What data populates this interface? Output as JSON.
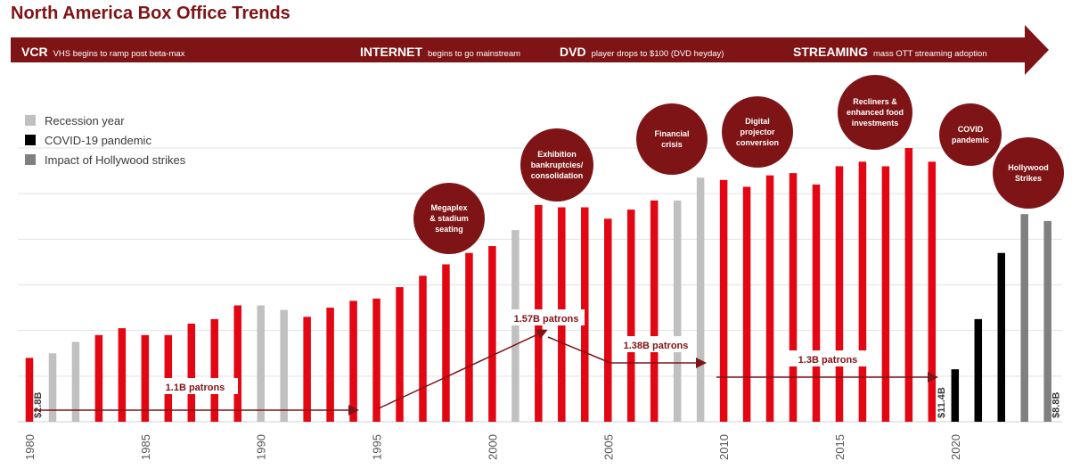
{
  "title": "North America Box Office Trends",
  "eras": [
    {
      "name": "VCR",
      "desc": "VHS begins to ramp post beta-max"
    },
    {
      "name": "INTERNET",
      "desc": "begins to go mainstream"
    },
    {
      "name": "DVD",
      "desc": "player drops to $100 (DVD heyday)"
    },
    {
      "name": "STREAMING",
      "desc": "mass OTT streaming adoption"
    }
  ],
  "legend": [
    {
      "label": "Recession year",
      "color": "#c0c0c0"
    },
    {
      "label": "COVID-19 pandemic",
      "color": "#000000"
    },
    {
      "label": "Impact of Hollywood strikes",
      "color": "#7f7f7f"
    }
  ],
  "bubbles": [
    {
      "text": "Megaplex\n& stadium\nseating"
    },
    {
      "text": "Exhibition\nbankruptcies/\nconsolidation"
    },
    {
      "text": "Financial\ncrisis"
    },
    {
      "text": "Digital\nprojector\nconversion"
    },
    {
      "text": "Recliners &\nenhanced food\ninvestments"
    },
    {
      "text": "COVID\npandemic"
    },
    {
      "text": "Hollywood\nStrikes"
    }
  ],
  "colors": {
    "primary": "#e30613",
    "dark_red": "#7f1416",
    "recession": "#c0c0c0",
    "covid": "#000000",
    "strike": "#7f7f7f"
  },
  "chart_data": {
    "type": "bar",
    "title": "North America Box Office Trends",
    "xlabel": "",
    "ylabel": "",
    "x_ticks": [
      1980,
      1985,
      1990,
      1995,
      2000,
      2005,
      2010,
      2015,
      2020
    ],
    "ylim": [
      0,
      12.0
    ],
    "grid": true,
    "categories": [
      1980,
      1981,
      1982,
      1983,
      1984,
      1985,
      1986,
      1987,
      1988,
      1989,
      1990,
      1991,
      1992,
      1993,
      1994,
      1995,
      1996,
      1997,
      1998,
      1999,
      2000,
      2001,
      2002,
      2003,
      2004,
      2005,
      2006,
      2007,
      2008,
      2009,
      2010,
      2011,
      2012,
      2013,
      2014,
      2015,
      2016,
      2017,
      2018,
      2019,
      2020,
      2021,
      2022,
      2023,
      2024
    ],
    "values": [
      2.8,
      3.0,
      3.5,
      3.8,
      4.1,
      3.8,
      3.8,
      4.3,
      4.5,
      5.1,
      5.1,
      4.9,
      4.6,
      5.0,
      5.3,
      5.4,
      5.9,
      6.4,
      6.9,
      7.4,
      7.7,
      8.4,
      9.5,
      9.4,
      9.4,
      8.9,
      9.3,
      9.7,
      9.7,
      10.7,
      10.6,
      10.3,
      10.8,
      10.9,
      10.4,
      11.2,
      11.4,
      11.2,
      12.0,
      11.4,
      2.3,
      4.5,
      7.4,
      9.1,
      8.8
    ],
    "categories_type": [
      "normal",
      "recession",
      "recession",
      "normal",
      "normal",
      "normal",
      "normal",
      "normal",
      "normal",
      "normal",
      "recession",
      "recession",
      "normal",
      "normal",
      "normal",
      "normal",
      "normal",
      "normal",
      "normal",
      "normal",
      "normal",
      "recession",
      "normal",
      "normal",
      "normal",
      "normal",
      "normal",
      "normal",
      "recession",
      "recession",
      "normal",
      "normal",
      "normal",
      "normal",
      "normal",
      "normal",
      "normal",
      "normal",
      "normal",
      "normal",
      "covid",
      "covid",
      "covid",
      "strike",
      "strike"
    ],
    "value_labels": [
      {
        "year": 1980,
        "text": "$2.8B"
      },
      {
        "year": 2019,
        "text": "$11.4B"
      },
      {
        "year": 2024,
        "text": "$8.8B"
      }
    ],
    "annotations": [
      {
        "text": "1.1B patrons",
        "from_year": 1980,
        "to_year": 1994,
        "kind": "flat"
      },
      {
        "text": "1.57B patrons",
        "from_year": 1995,
        "to_year": 2002,
        "kind": "rise"
      },
      {
        "text": "1.38B patrons",
        "from_year": 2003,
        "to_year": 2009,
        "kind": "fall"
      },
      {
        "text": "1.3B patrons",
        "from_year": 2010,
        "to_year": 2019,
        "kind": "flat"
      }
    ]
  }
}
